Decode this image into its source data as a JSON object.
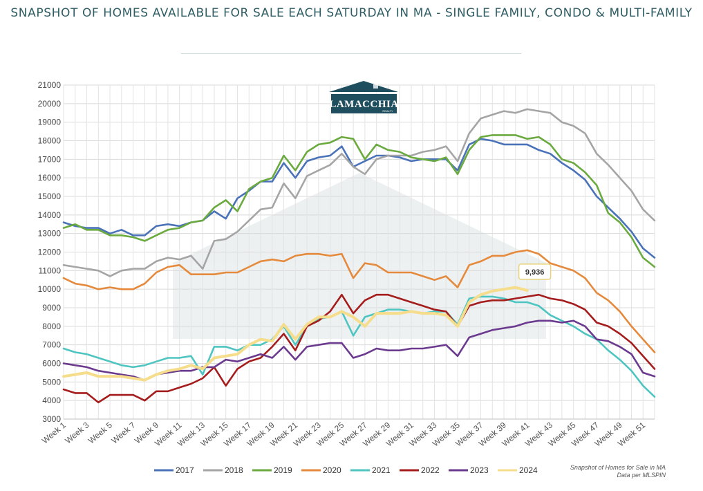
{
  "header": {
    "title": "SNAPSHOT OF HOMES AVAILABLE FOR SALE EACH SATURDAY IN MA - SINGLE FAMILY, CONDO & MULTI-FAMILY"
  },
  "logo": {
    "name": "LAMACCHIA",
    "sub": "REALTY"
  },
  "source_note": {
    "line1": "Snapshot of Homes for Sale in MA",
    "line2": "Data per MLSPIN"
  },
  "callout": {
    "label": "9,936",
    "series": "2024",
    "week": 41
  },
  "colors": {
    "2017": "#4a72b8",
    "2018": "#a5a5a5",
    "2019": "#6aaa3f",
    "2020": "#e58a3c",
    "2021": "#4ec5c1",
    "2022": "#a51c1c",
    "2023": "#6b3a8e",
    "2024": "#f5dd8c"
  },
  "chart_data": {
    "type": "line",
    "ylim": [
      3000,
      21000
    ],
    "yticks": [
      "3000",
      "4000",
      "5000",
      "6000",
      "7000",
      "8000",
      "9000",
      "10000",
      "11000",
      "12000",
      "13000",
      "14000",
      "15000",
      "16000",
      "17000",
      "18000",
      "19000",
      "20000",
      "21000"
    ],
    "xtick_labels": [
      "Week 1",
      "Week 3",
      "Week 5",
      "Week 7",
      "Week 9",
      "Week 11",
      "Week 13",
      "Week 15",
      "Week 17",
      "Week 19",
      "Week 21",
      "Week 23",
      "Week 25",
      "Week 27",
      "Week 29",
      "Week 31",
      "Week 33",
      "Week 35",
      "Week 37",
      "Week 39",
      "Week 41",
      "Week 43",
      "Week 45",
      "Week 47",
      "Week 49",
      "Week 51"
    ],
    "grid": true,
    "legend_position": "bottom",
    "series": [
      {
        "name": "2017",
        "values": [
          13600,
          13400,
          13300,
          13300,
          13000,
          13200,
          12900,
          12900,
          13400,
          13500,
          13400,
          13600,
          13700,
          14200,
          13800,
          14900,
          15300,
          15800,
          15800,
          16800,
          16000,
          16900,
          17100,
          17200,
          17700,
          16600,
          16900,
          17200,
          17200,
          17100,
          16900,
          17000,
          17000,
          17000,
          16400,
          17800,
          18100,
          18000,
          17800,
          17800,
          17800,
          17500,
          17300,
          16800,
          16400,
          15900,
          15000,
          14400,
          13800,
          13100,
          12200,
          11700
        ]
      },
      {
        "name": "2018",
        "values": [
          11300,
          11200,
          11100,
          11000,
          10700,
          11000,
          11100,
          11100,
          11500,
          11700,
          11600,
          11800,
          11100,
          12600,
          12700,
          13100,
          13700,
          14300,
          14400,
          15700,
          14900,
          16100,
          16400,
          16700,
          17300,
          16600,
          16200,
          17000,
          17200,
          17200,
          17200,
          17400,
          17500,
          17700,
          16900,
          18400,
          19200,
          19400,
          19600,
          19500,
          19700,
          19600,
          19500,
          19000,
          18800,
          18400,
          17300,
          16700,
          16000,
          15300,
          14300,
          13700
        ]
      },
      {
        "name": "2019",
        "values": [
          13300,
          13500,
          13200,
          13200,
          12900,
          12900,
          12800,
          12600,
          12900,
          13200,
          13300,
          13600,
          13700,
          14400,
          14800,
          14200,
          15400,
          15800,
          16000,
          17200,
          16400,
          17400,
          17800,
          17900,
          18200,
          18100,
          17000,
          17800,
          17500,
          17400,
          17100,
          17000,
          16900,
          17100,
          16200,
          17500,
          18200,
          18300,
          18300,
          18300,
          18100,
          18200,
          17800,
          17000,
          16800,
          16300,
          15600,
          14100,
          13600,
          12800,
          11700,
          11200
        ]
      },
      {
        "name": "2020",
        "values": [
          10600,
          10300,
          10200,
          10000,
          10100,
          10000,
          10000,
          10300,
          10900,
          11200,
          11300,
          10800,
          10800,
          10800,
          10900,
          10900,
          11200,
          11500,
          11600,
          11500,
          11800,
          11900,
          11900,
          11800,
          11900,
          10600,
          11400,
          11300,
          10900,
          10900,
          10900,
          10700,
          10500,
          10700,
          10100,
          11300,
          11500,
          11800,
          11800,
          12000,
          12100,
          11900,
          11400,
          11200,
          11000,
          10600,
          9800,
          9400,
          8800,
          8000,
          7300,
          6600
        ]
      },
      {
        "name": "2021",
        "values": [
          6800,
          6600,
          6500,
          6300,
          6100,
          5900,
          5800,
          5900,
          6100,
          6300,
          6300,
          6400,
          5400,
          6900,
          6900,
          6700,
          7000,
          7000,
          7300,
          8000,
          7000,
          8000,
          8400,
          8500,
          8800,
          7500,
          8500,
          8700,
          8900,
          8900,
          8800,
          8700,
          8800,
          8800,
          8100,
          9500,
          9600,
          9600,
          9500,
          9300,
          9300,
          9100,
          8600,
          8300,
          8000,
          7600,
          7300,
          6700,
          6200,
          5600,
          4800,
          4200
        ]
      },
      {
        "name": "2022",
        "values": [
          4600,
          4400,
          4400,
          3900,
          4300,
          4300,
          4300,
          4000,
          4500,
          4500,
          4700,
          4900,
          5200,
          5800,
          4800,
          5700,
          6100,
          6300,
          6900,
          7600,
          6700,
          8000,
          8300,
          8800,
          9700,
          8700,
          9400,
          9700,
          9700,
          9500,
          9300,
          9100,
          8900,
          8800,
          8000,
          9100,
          9300,
          9400,
          9400,
          9500,
          9600,
          9700,
          9500,
          9400,
          9200,
          8900,
          8200,
          8000,
          7600,
          7100,
          6400,
          5700
        ]
      },
      {
        "name": "2023",
        "values": [
          6000,
          5900,
          5800,
          5600,
          5500,
          5400,
          5300,
          5100,
          5400,
          5500,
          5600,
          5600,
          5800,
          5800,
          6200,
          6100,
          6300,
          6500,
          6300,
          6900,
          6200,
          6900,
          7000,
          7100,
          7100,
          6300,
          6500,
          6800,
          6700,
          6700,
          6800,
          6800,
          6900,
          7000,
          6400,
          7400,
          7600,
          7800,
          7900,
          8000,
          8200,
          8300,
          8300,
          8200,
          8300,
          8000,
          7300,
          7200,
          6900,
          6500,
          5500,
          5300
        ]
      },
      {
        "name": "2024",
        "values": [
          5300,
          5400,
          5500,
          5300,
          5300,
          5300,
          5200,
          5100,
          5400,
          5600,
          5700,
          5900,
          5700,
          6300,
          6400,
          6500,
          7000,
          7300,
          7200,
          8100,
          7300,
          8100,
          8500,
          8500,
          8800,
          8500,
          8000,
          8700,
          8700,
          8700,
          8800,
          8700,
          8700,
          8600,
          8000,
          9300,
          9700,
          9900,
          10000,
          10100,
          9936
        ]
      }
    ]
  }
}
